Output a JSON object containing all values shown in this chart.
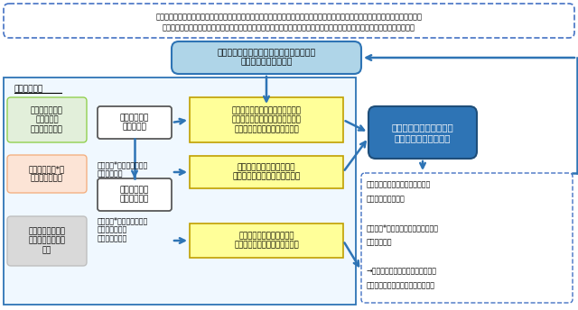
{
  "fig_width": 6.4,
  "fig_height": 3.44,
  "bg_color": "#ffffff",
  "header_text1": "人生の最終段階における医療・ケアについては、医師等の医療従事者から本人・家族等へ適切な情報の提供と説明がなされた上で、",
  "header_text2": "介護従事者を含む多専門職種からなる医療・ケアチームと十分な話し合いを行い、本人の意思決定を基本として進めること。",
  "header_box_color": "#ffffff",
  "header_border_color": "#4472c4",
  "top_box_text": "心身の状態に応じて意思は変化しうるため\n繰り返し話し合うこと",
  "top_box_bg": "#afd5e8",
  "top_box_border": "#2e74b5",
  "main_panel_border": "#2e74b5",
  "main_points_label": "主なポイント",
  "left_box1_text": "本人の人生観や\n価値観等、\nできる限り把握",
  "left_box1_bg": "#e2efda",
  "left_box1_border": "#92d050",
  "left_box2_text": "本人や家族等*と\n十分に話し合う",
  "left_box2_bg": "#fce4d6",
  "left_box2_border": "#f4b183",
  "left_box3_text": "話し合った内容を\n都度文書にまとめ\n共有",
  "left_box3_bg": "#d9d9d9",
  "left_box3_border": "#bfbfbf",
  "cond1_text": "本人の意思が\n確認できる",
  "cond1_bg": "#ffffff",
  "cond1_border": "#595959",
  "cond2_text": "本人の意思が\n確認できない",
  "cond2_bg": "#ffffff",
  "cond2_border": "#595959",
  "sub1_text": "・家族等*が本人の意思を\n　推定できる",
  "sub2_text": "・家族等*が本人の意思を\n　推定できない\n・家族がいない",
  "yellow1_text": "本人と医療・ケアチームとの合意\n形成に向けた十分な話し合いを踏\nまえた、本人の意思決定が基本",
  "yellow1_bg": "#ffff99",
  "yellow1_border": "#c0a000",
  "yellow2_text": "本人の推定意思を尊重し、\n本人にとって最善の方針をとる",
  "yellow2_bg": "#ffff99",
  "yellow2_border": "#c0a000",
  "yellow3_text": "本人にとって最善の方針を\n医療・ケアチームで慎重に判断",
  "yellow3_bg": "#ffff99",
  "yellow3_border": "#c0a000",
  "final_box_text": "人生の最終段階における\n医療・ケアの方針決定",
  "final_box_bg": "#2e74b5",
  "final_box_text_color": "#ffffff",
  "final_box_border": "#1f4e79",
  "right_panel_border": "#4472c4",
  "right_panel_bg": "#ffffff",
  "right_panel_line1": "・心身の状態等により医療・ケア",
  "right_panel_line2": "　内容の決定が困難",
  "right_panel_line3": "・家族等*の中で意見がまとまらない",
  "right_panel_line4": "　などの場合",
  "right_panel_line5": "→複数の専門家で構成する話し合い",
  "right_panel_line6": "　の場を設置し、方針の検討や助言",
  "arrow_color": "#2e74b5"
}
